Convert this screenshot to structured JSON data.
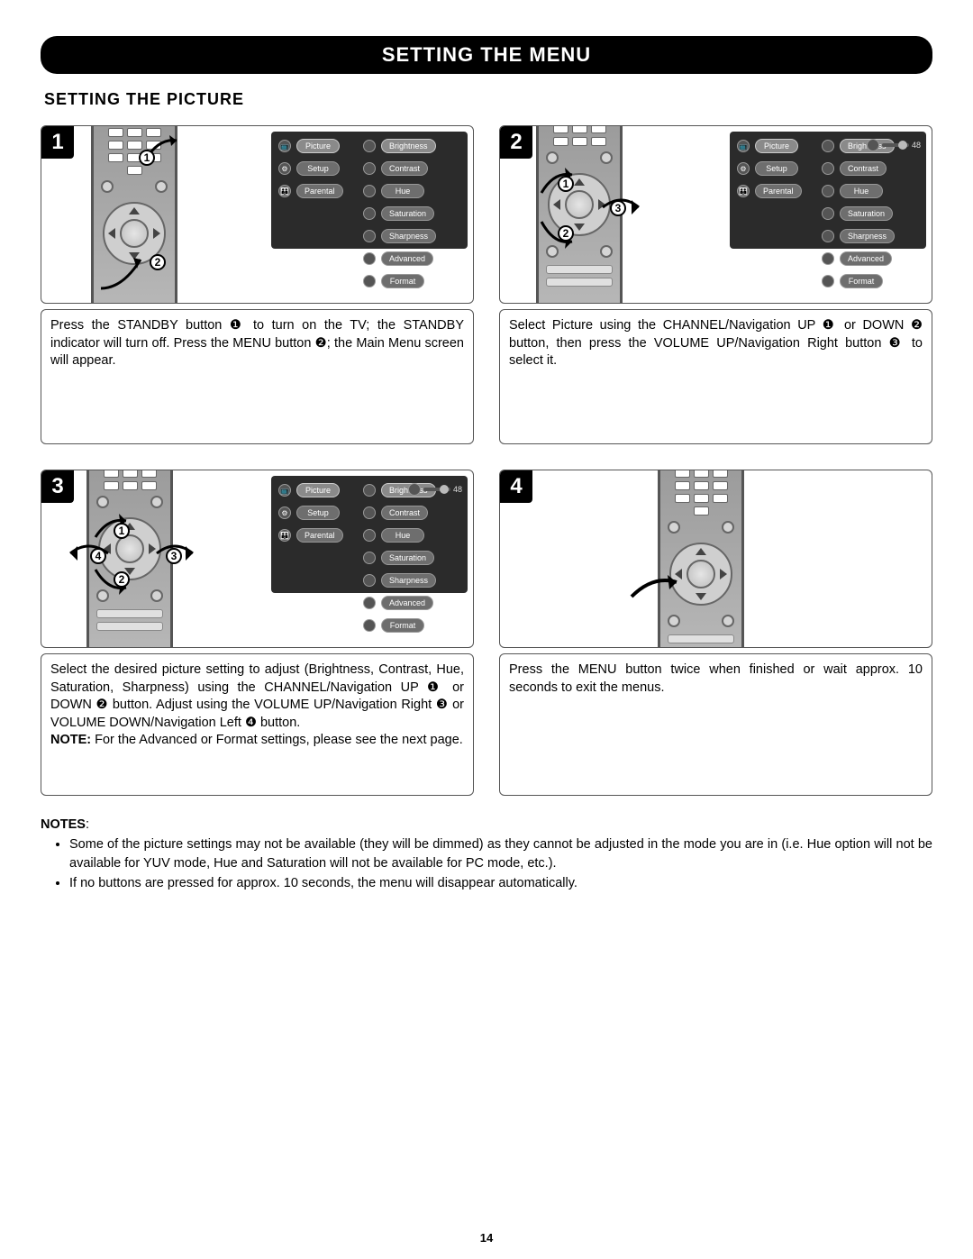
{
  "page": {
    "title": "SETTING THE MENU",
    "subtitle": "SETTING THE PICTURE",
    "page_number": "14"
  },
  "colors": {
    "title_bg": "#000000",
    "title_fg": "#ffffff",
    "osd_bg": "#2b2b2b",
    "pill_bg": "#6e6e6e",
    "remote_body": "#a8a8a8"
  },
  "osd": {
    "left_items": [
      {
        "icon": "📺",
        "label": "Picture"
      },
      {
        "icon": "⚙",
        "label": "Setup"
      },
      {
        "icon": "👪",
        "label": "Parental"
      }
    ],
    "right_items": [
      "Brightness",
      "Contrast",
      "Hue",
      "Saturation",
      "Sharpness",
      "Advanced",
      "Format"
    ],
    "slider_value": "48"
  },
  "steps": [
    {
      "num": "1",
      "callouts": [
        "1",
        "2"
      ],
      "show_slider": false,
      "caption": "Press the STANDBY button ❶ to turn on the TV; the STANDBY indicator will turn off. Press the MENU button ❷; the Main Menu screen will appear."
    },
    {
      "num": "2",
      "callouts": [
        "1",
        "2",
        "3"
      ],
      "show_slider": true,
      "caption": "Select Picture using the CHANNEL/Navigation UP ❶ or DOWN ❷ button, then press the VOLUME UP/Navigation Right button ❸ to select it."
    },
    {
      "num": "3",
      "callouts": [
        "1",
        "2",
        "3",
        "4"
      ],
      "show_slider": true,
      "caption_html": "Select the desired picture setting to adjust (Brightness, Contrast, Hue, Saturation, Sharpness) using the CHANNEL/Navigation UP ❶ or DOWN ❷ button. Adjust using the VOLUME UP/Navigation Right ❸ or VOLUME DOWN/Navigation Left ❹ button.<br><span class=\"note-inline\">NOTE:</span> For the  Advanced or Format settings, please see the next page."
    },
    {
      "num": "4",
      "callouts": [],
      "show_slider": false,
      "no_osd": true,
      "caption": "Press the MENU button twice when finished or wait approx. 10 seconds to exit the menus."
    }
  ],
  "notes": {
    "label": "NOTES",
    "items": [
      "Some of the picture settings may not be available (they will be dimmed) as they cannot be adjusted in the mode you are in (i.e. Hue option will not be available for YUV mode, Hue and Saturation will not be available for PC mode, etc.).",
      "If no buttons are pressed for approx. 10 seconds, the menu will disappear automatically."
    ]
  }
}
